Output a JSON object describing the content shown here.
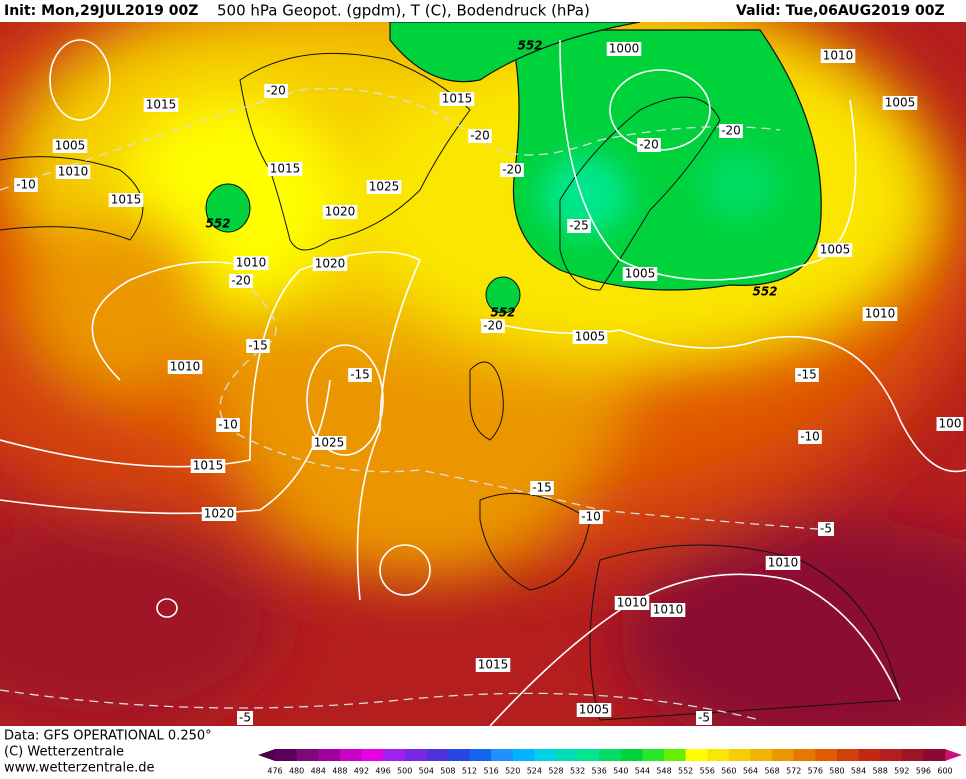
{
  "header": {
    "init": "Init: Mon,29JUL2019 00Z",
    "title": "500 hPa Geopot. (gpdm), T (C), Bodendruck (hPa)",
    "valid": "Valid: Tue,06AUG2019 00Z"
  },
  "map_labels": {
    "isobars": [
      "1000",
      "1010",
      "1005",
      "1015",
      "1015",
      "1005",
      "1010",
      "1015",
      "1015",
      "1025",
      "1020",
      "1010",
      "1020",
      "1005",
      "1005",
      "1010",
      "1005",
      "1010",
      "1025",
      "1015",
      "1020",
      "1010",
      "1010",
      "1010",
      "1015",
      "1005",
      "100"
    ],
    "isotherms": [
      "-20",
      "-20",
      "-20",
      "-20",
      "-20",
      "-10",
      "-20",
      "-25",
      "-20",
      "-15",
      "-15",
      "-10",
      "-15",
      "-10",
      "-15",
      "-10",
      "-5",
      "-5",
      "-5"
    ],
    "geopotential": [
      "552",
      "552",
      "552",
      "552"
    ]
  },
  "footer": {
    "data": "Data: GFS OPERATIONAL 0.250°",
    "copyright": "(C) Wetterzentrale",
    "url": "www.wetterzentrale.de"
  },
  "colorbar": {
    "labels": [
      476,
      480,
      484,
      488,
      492,
      496,
      500,
      504,
      508,
      512,
      516,
      520,
      524,
      528,
      532,
      536,
      540,
      544,
      548,
      552,
      556,
      560,
      564,
      568,
      572,
      576,
      580,
      584,
      588,
      592,
      596,
      600
    ],
    "colors": [
      "#5a005a",
      "#7a0a7a",
      "#a000a0",
      "#c800c8",
      "#e600e6",
      "#a020f0",
      "#7828e6",
      "#5032dc",
      "#2846e6",
      "#1464f0",
      "#1e90ff",
      "#00b4ff",
      "#00d2e6",
      "#00dcb4",
      "#00e68c",
      "#00dc64",
      "#00d23c",
      "#28e628",
      "#64f000",
      "#ffff00",
      "#fae600",
      "#f5cd00",
      "#f0b400",
      "#eb9600",
      "#e67800",
      "#e15a00",
      "#d2410a",
      "#c32814",
      "#b41e1e",
      "#a01428",
      "#8c0a32"
    ],
    "low_color": "#4a004a",
    "high_color": "#d0107a"
  }
}
